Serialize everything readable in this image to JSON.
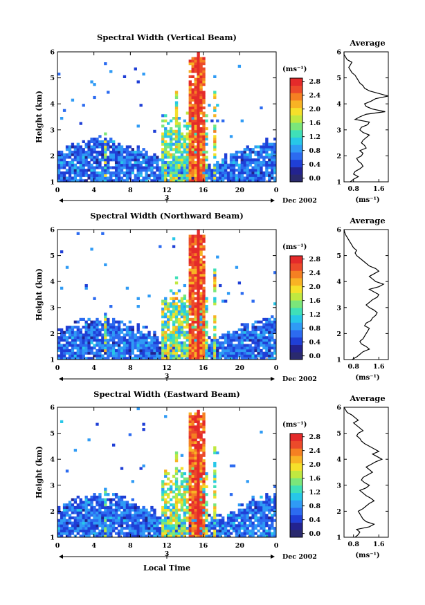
{
  "chart_data": [
    {
      "type": "heatmap",
      "title": "Spectral Width (Vertical Beam)",
      "ylabel": "Height (km)",
      "xlabel": "",
      "x_ticks": [
        "0",
        "4",
        "8",
        "12",
        "16",
        "20",
        "0"
      ],
      "y_ticks": [
        "1",
        "2",
        "3",
        "4",
        "5",
        "6"
      ],
      "xlim": [
        0,
        24
      ],
      "ylim": [
        1,
        6
      ],
      "date_day": "3",
      "date_suffix": "Dec 2002",
      "colorbar": {
        "unit": "(ms⁻¹)",
        "ticks": [
          "0.0",
          "0.4",
          "0.8",
          "1.2",
          "1.6",
          "2.0",
          "2.4",
          "2.8"
        ],
        "range": [
          0,
          3.0
        ]
      },
      "average_profile": {
        "title": "Average",
        "xlabel": "(ms⁻¹)",
        "x_ticks": [
          "0.8",
          "1.6"
        ],
        "xlim": [
          0.5,
          1.9
        ],
        "y_ticks": [
          "1",
          "2",
          "3",
          "4",
          "5",
          "6"
        ],
        "heights": [
          1.0,
          1.1,
          1.2,
          1.3,
          1.4,
          1.5,
          1.6,
          1.7,
          1.8,
          1.9,
          2.0,
          2.1,
          2.2,
          2.3,
          2.4,
          2.5,
          2.6,
          2.7,
          2.8,
          2.9,
          3.0,
          3.1,
          3.2,
          3.3,
          3.4,
          3.5,
          3.6,
          3.7,
          3.8,
          3.9,
          4.0,
          4.1,
          4.2,
          4.3,
          4.4,
          4.5,
          4.6,
          4.7,
          4.8,
          4.9,
          5.0,
          5.1,
          5.2,
          5.3,
          5.4,
          5.5,
          5.6,
          5.7,
          5.8,
          5.9,
          6.0
        ],
        "values": [
          0.7,
          0.8,
          0.95,
          0.8,
          0.85,
          1.0,
          1.1,
          1.05,
          0.95,
          0.9,
          1.05,
          1.1,
          1.0,
          1.2,
          1.15,
          1.05,
          1.1,
          1.2,
          1.3,
          1.1,
          1.0,
          1.05,
          1.25,
          1.3,
          0.85,
          1.0,
          1.2,
          1.8,
          1.4,
          1.2,
          1.15,
          1.35,
          1.5,
          1.9,
          1.6,
          1.3,
          1.15,
          1.1,
          1.0,
          0.95,
          0.9,
          0.85,
          0.75,
          0.7,
          0.65,
          0.7,
          0.75,
          0.6,
          0.55,
          0.5,
          0.5
        ]
      }
    },
    {
      "type": "heatmap",
      "title": "Spectral Width (Northward Beam)",
      "ylabel": "Height (km)",
      "xlabel": "",
      "x_ticks": [
        "0",
        "4",
        "8",
        "12",
        "16",
        "20",
        "0"
      ],
      "y_ticks": [
        "1",
        "2",
        "3",
        "4",
        "5",
        "6"
      ],
      "xlim": [
        0,
        24
      ],
      "ylim": [
        1,
        6
      ],
      "date_day": "3",
      "date_suffix": "Dec 2002",
      "colorbar": {
        "unit": "(ms⁻¹)",
        "ticks": [
          "0.0",
          "0.4",
          "0.8",
          "1.2",
          "1.6",
          "2.0",
          "2.4",
          "2.8"
        ],
        "range": [
          0,
          3.0
        ]
      },
      "average_profile": {
        "title": "Average",
        "xlabel": "(ms⁻¹)",
        "x_ticks": [
          "0.8",
          "1.6"
        ],
        "xlim": [
          0.5,
          1.9
        ],
        "y_ticks": [
          "1",
          "2",
          "3",
          "4",
          "5",
          "6"
        ],
        "heights": [
          1.0,
          1.1,
          1.2,
          1.3,
          1.4,
          1.5,
          1.6,
          1.7,
          1.8,
          1.9,
          2.0,
          2.1,
          2.2,
          2.3,
          2.4,
          2.5,
          2.6,
          2.7,
          2.8,
          2.9,
          3.0,
          3.1,
          3.2,
          3.3,
          3.4,
          3.5,
          3.6,
          3.7,
          3.8,
          3.9,
          4.0,
          4.1,
          4.2,
          4.3,
          4.4,
          4.5,
          4.6,
          4.7,
          4.8,
          4.9,
          5.0,
          5.1,
          5.2,
          5.3,
          5.4,
          5.5,
          5.6,
          5.7,
          5.8,
          5.9,
          6.0
        ],
        "values": [
          0.75,
          0.9,
          1.0,
          1.1,
          1.3,
          1.2,
          1.05,
          1.0,
          1.1,
          1.15,
          1.2,
          1.25,
          1.3,
          1.15,
          1.2,
          1.35,
          1.4,
          1.5,
          1.55,
          1.45,
          1.3,
          1.2,
          1.3,
          1.4,
          1.55,
          1.6,
          1.45,
          1.3,
          1.6,
          1.75,
          1.5,
          1.4,
          1.3,
          1.45,
          1.6,
          1.5,
          1.3,
          1.2,
          1.1,
          1.0,
          0.9,
          0.85,
          0.9,
          0.8,
          0.75,
          0.7,
          0.65,
          0.6,
          0.55,
          0.52,
          0.5
        ]
      }
    },
    {
      "type": "heatmap",
      "title": "Spectral Width (Eastward Beam)",
      "ylabel": "Height (km)",
      "xlabel": "Local Time",
      "x_ticks": [
        "0",
        "4",
        "8",
        "12",
        "16",
        "20",
        "0"
      ],
      "y_ticks": [
        "1",
        "2",
        "3",
        "4",
        "5",
        "6"
      ],
      "xlim": [
        0,
        24
      ],
      "ylim": [
        1,
        6
      ],
      "date_day": "3",
      "date_suffix": "Dec 2002",
      "colorbar": {
        "unit": "(ms⁻¹)",
        "ticks": [
          "0.0",
          "0.4",
          "0.8",
          "1.2",
          "1.6",
          "2.0",
          "2.4",
          "2.8"
        ],
        "range": [
          0,
          3.0
        ]
      },
      "average_profile": {
        "title": "Average",
        "xlabel": "(ms⁻¹)",
        "x_ticks": [
          "0.8",
          "1.6"
        ],
        "xlim": [
          0.5,
          1.9
        ],
        "y_ticks": [
          "1",
          "2",
          "3",
          "4",
          "5",
          "6"
        ],
        "heights": [
          1.0,
          1.1,
          1.2,
          1.3,
          1.4,
          1.5,
          1.6,
          1.7,
          1.8,
          1.9,
          2.0,
          2.1,
          2.2,
          2.3,
          2.4,
          2.5,
          2.6,
          2.7,
          2.8,
          2.9,
          3.0,
          3.1,
          3.2,
          3.3,
          3.4,
          3.5,
          3.6,
          3.7,
          3.8,
          3.9,
          4.0,
          4.1,
          4.2,
          4.3,
          4.4,
          4.5,
          4.6,
          4.7,
          4.8,
          4.9,
          5.0,
          5.1,
          5.2,
          5.3,
          5.4,
          5.5,
          5.6,
          5.7,
          5.8,
          5.9,
          6.0
        ],
        "values": [
          0.85,
          0.95,
          1.0,
          0.9,
          1.3,
          1.45,
          1.2,
          1.1,
          1.05,
          1.0,
          0.95,
          1.1,
          1.2,
          1.3,
          1.45,
          1.35,
          1.2,
          1.1,
          1.0,
          1.2,
          1.3,
          1.15,
          1.05,
          1.1,
          1.25,
          1.4,
          1.3,
          1.2,
          1.35,
          1.5,
          1.7,
          1.55,
          1.4,
          1.6,
          1.45,
          1.3,
          1.15,
          1.05,
          1.0,
          0.9,
          0.95,
          1.1,
          1.0,
          0.9,
          0.8,
          0.95,
          0.85,
          0.75,
          0.6,
          0.55,
          0.5
        ]
      }
    }
  ],
  "colormap": [
    "#2a2a6e",
    "#23238f",
    "#1f3fd6",
    "#2c6bf0",
    "#2f9bf5",
    "#27c7e8",
    "#3fe0b8",
    "#7be67a",
    "#c0e840",
    "#f5e02a",
    "#f8b324",
    "#f58022",
    "#ec4a2a",
    "#e42a2a"
  ]
}
